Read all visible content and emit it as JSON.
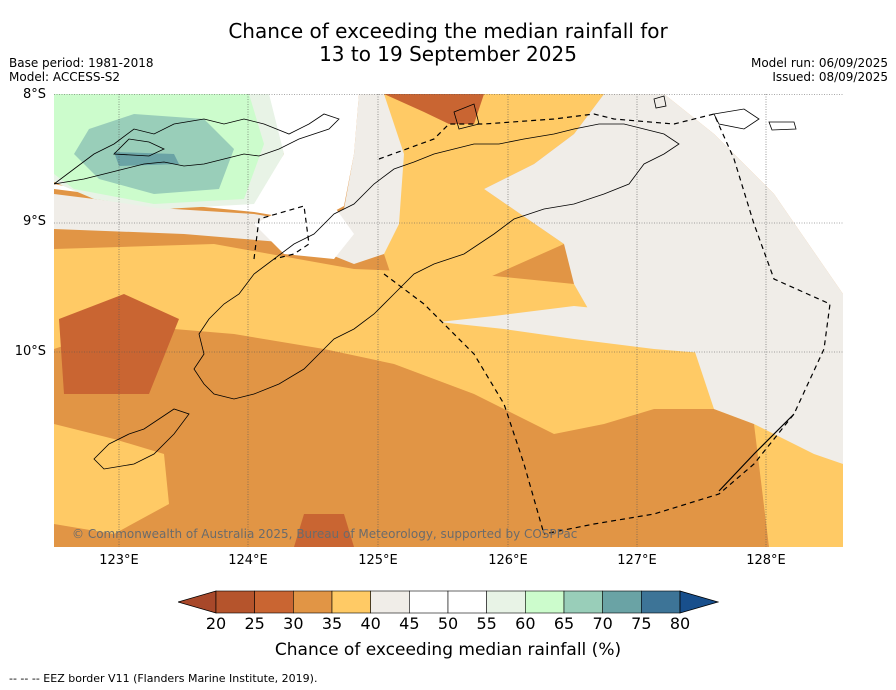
{
  "title": {
    "line1": "Chance of exceeding the median rainfall for",
    "line2": "13 to 19 September 2025"
  },
  "meta_left": {
    "base_period": "Base period: 1981-2018",
    "model": "Model: ACCESS-S2"
  },
  "meta_right": {
    "model_run": "Model run: 06/09/2025",
    "issued": "Issued: 08/09/2025"
  },
  "map": {
    "lat_labels": [
      "8°S",
      "9°S",
      "10°S"
    ],
    "lon_labels": [
      "123°E",
      "124°E",
      "125°E",
      "126°E",
      "127°E",
      "128°E"
    ],
    "copyright": "© Commonwealth of Australia 2025, Bureau of Meteorology, supported by COSPPac"
  },
  "colorbar": {
    "ticks": [
      "20",
      "25",
      "30",
      "35",
      "40",
      "45",
      "50",
      "55",
      "60",
      "65",
      "70",
      "75",
      "80"
    ],
    "colors": [
      "#a8482a",
      "#b5542c",
      "#c96532",
      "#e19545",
      "#ffca65",
      "#f0ede8",
      "#ffffff",
      "#ffffff",
      "#e8f3e6",
      "#ccfccc",
      "#99ceb9",
      "#6aa3a5",
      "#3d7497",
      "#184f8c"
    ],
    "label": "Chance of exceeding median rainfall (%)"
  },
  "footer": "-- -- -- EEZ border V11 (Flanders Marine Institute, 2019)."
}
